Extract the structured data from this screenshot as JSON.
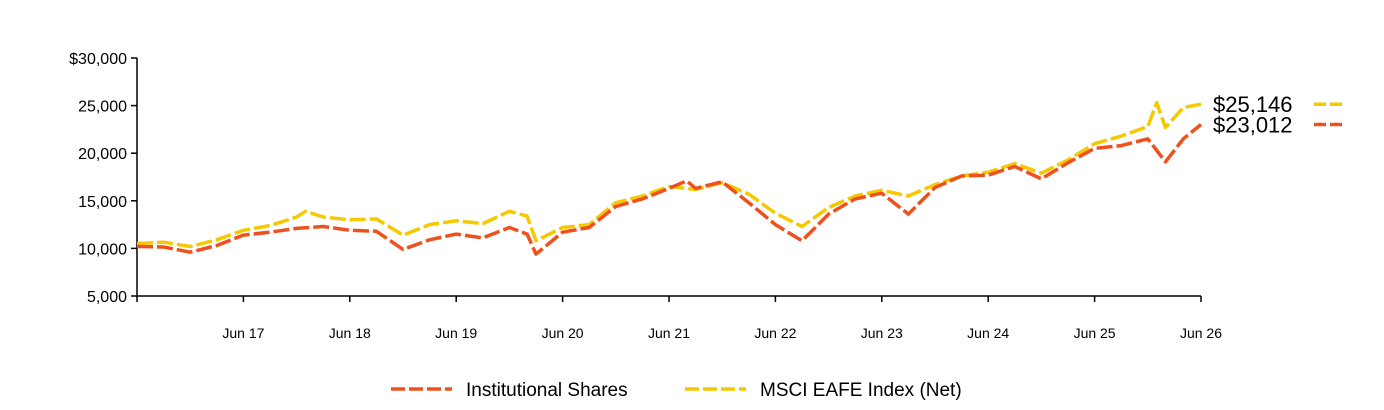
{
  "chart_data": {
    "type": "line",
    "title": "",
    "xlabel": "",
    "ylabel": "",
    "x_tick_labels": [
      "Jun 17",
      "Jun 18",
      "Jun 19",
      "Jun 20",
      "Jun 21",
      "Jun 22",
      "Jun 23",
      "Jun 24",
      "Jun 25",
      "Jun 26"
    ],
    "y_tick_labels": [
      "$30,000",
      "25,000",
      "20,000",
      "15,000",
      "10,000",
      "5,000"
    ],
    "y_ticks": [
      30000,
      25000,
      20000,
      15000,
      10000,
      5000
    ],
    "ylim": [
      5000,
      30000
    ],
    "x_range": [
      "2016-06",
      "2026-06"
    ],
    "legend_position": "bottom-center",
    "series": [
      {
        "name": "Institutional Shares",
        "color": "#f0501e",
        "end_label": "$23,012",
        "points": [
          [
            "2016-06",
            10200
          ],
          [
            "2016-09",
            10150
          ],
          [
            "2016-12",
            9600
          ],
          [
            "2017-03",
            10300
          ],
          [
            "2017-06",
            11400
          ],
          [
            "2017-09",
            11700
          ],
          [
            "2017-12",
            12100
          ],
          [
            "2018-03",
            12300
          ],
          [
            "2018-06",
            11900
          ],
          [
            "2018-09",
            11800
          ],
          [
            "2018-12",
            9900
          ],
          [
            "2019-03",
            10900
          ],
          [
            "2019-06",
            11500
          ],
          [
            "2019-09",
            11100
          ],
          [
            "2019-12",
            12200
          ],
          [
            "2020-02",
            11500
          ],
          [
            "2020-03",
            9400
          ],
          [
            "2020-06",
            11700
          ],
          [
            "2020-09",
            12200
          ],
          [
            "2020-12",
            14400
          ],
          [
            "2021-03",
            15200
          ],
          [
            "2021-06",
            16300
          ],
          [
            "2021-08",
            17100
          ],
          [
            "2021-09",
            16300
          ],
          [
            "2021-12",
            17000
          ],
          [
            "2022-03",
            14800
          ],
          [
            "2022-06",
            12500
          ],
          [
            "2022-09",
            10800
          ],
          [
            "2022-12",
            13600
          ],
          [
            "2023-03",
            15200
          ],
          [
            "2023-06",
            15800
          ],
          [
            "2023-09",
            13600
          ],
          [
            "2023-12",
            16400
          ],
          [
            "2024-03",
            17600
          ],
          [
            "2024-06",
            17700
          ],
          [
            "2024-09",
            18600
          ],
          [
            "2024-12",
            17300
          ],
          [
            "2025-03",
            19000
          ],
          [
            "2025-06",
            20500
          ],
          [
            "2025-09",
            20800
          ],
          [
            "2025-12",
            21500
          ],
          [
            "2026-02",
            19100
          ],
          [
            "2026-04",
            21500
          ],
          [
            "2026-06",
            23012
          ]
        ]
      },
      {
        "name": "MSCI EAFE Index (Net)",
        "color": "#f5c800",
        "end_label": "$25,146",
        "points": [
          [
            "2016-06",
            10500
          ],
          [
            "2016-09",
            10650
          ],
          [
            "2016-12",
            10200
          ],
          [
            "2017-03",
            10900
          ],
          [
            "2017-06",
            11900
          ],
          [
            "2017-09",
            12400
          ],
          [
            "2017-12",
            13300
          ],
          [
            "2018-01",
            13900
          ],
          [
            "2018-03",
            13300
          ],
          [
            "2018-06",
            13000
          ],
          [
            "2018-09",
            13100
          ],
          [
            "2018-12",
            11400
          ],
          [
            "2019-03",
            12500
          ],
          [
            "2019-06",
            12900
          ],
          [
            "2019-09",
            12600
          ],
          [
            "2019-12",
            13900
          ],
          [
            "2020-02",
            13400
          ],
          [
            "2020-03",
            10800
          ],
          [
            "2020-06",
            12200
          ],
          [
            "2020-09",
            12500
          ],
          [
            "2020-12",
            14800
          ],
          [
            "2021-03",
            15500
          ],
          [
            "2021-06",
            16500
          ],
          [
            "2021-09",
            16200
          ],
          [
            "2021-12",
            16900
          ],
          [
            "2022-03",
            15700
          ],
          [
            "2022-06",
            13700
          ],
          [
            "2022-09",
            12300
          ],
          [
            "2022-12",
            14300
          ],
          [
            "2023-03",
            15500
          ],
          [
            "2023-06",
            16100
          ],
          [
            "2023-09",
            15500
          ],
          [
            "2023-12",
            16700
          ],
          [
            "2024-03",
            17600
          ],
          [
            "2024-06",
            18000
          ],
          [
            "2024-09",
            18900
          ],
          [
            "2024-12",
            17900
          ],
          [
            "2025-03",
            19300
          ],
          [
            "2025-06",
            21000
          ],
          [
            "2025-09",
            21800
          ],
          [
            "2025-12",
            22800
          ],
          [
            "2026-01",
            25300
          ],
          [
            "2026-02",
            22700
          ],
          [
            "2026-04",
            24800
          ],
          [
            "2026-06",
            25146
          ]
        ]
      }
    ]
  }
}
